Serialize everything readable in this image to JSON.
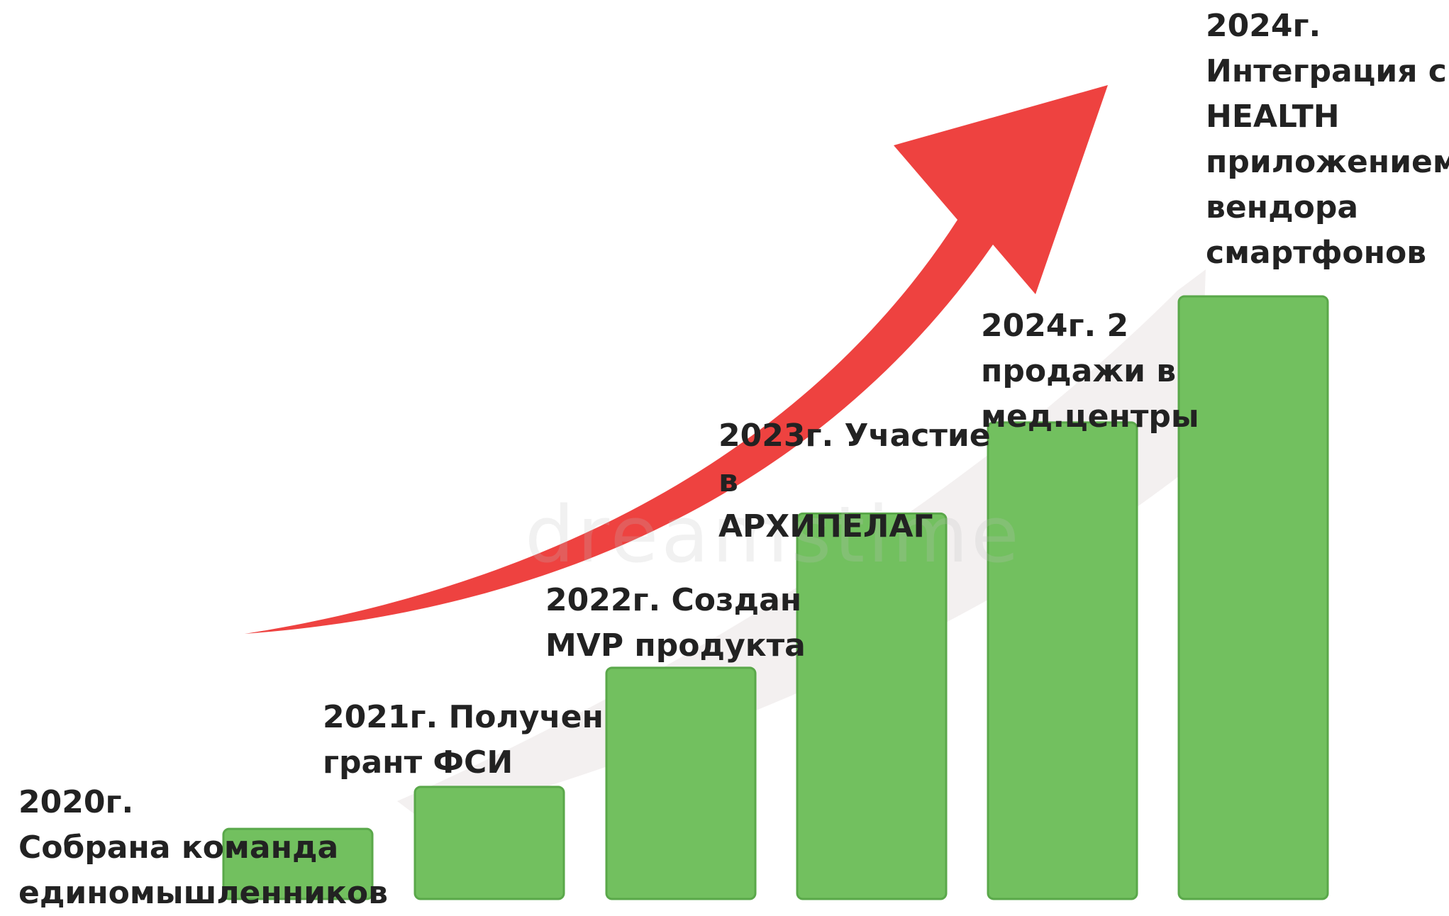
{
  "chart_data": {
    "type": "bar",
    "categories": [
      "2020г.",
      "2021г.",
      "2022г.",
      "2023г.",
      "2024г.",
      "2024г."
    ],
    "values": [
      1,
      1.6,
      3.3,
      5.5,
      6.8,
      8.6
    ],
    "labels": [
      "2020г.\nСобрана команда\nединомышленников",
      "2021г. Получен\nгрант ФСИ",
      "2022г. Создан\nMVP продукта",
      "2023г. Участие в\nАРХИПЕЛАГ",
      "2024г. 2\nпродажи в\nмед.центры",
      "2024г.\nИнтеграция с\nHEALTH\nприложением\nвендора\nсмартфонов"
    ],
    "ylim": [
      0,
      8.6
    ],
    "grid": false,
    "bar_color": "#72c05f",
    "arrow_color": "#ee4240"
  },
  "watermark_text": "dreamstime"
}
